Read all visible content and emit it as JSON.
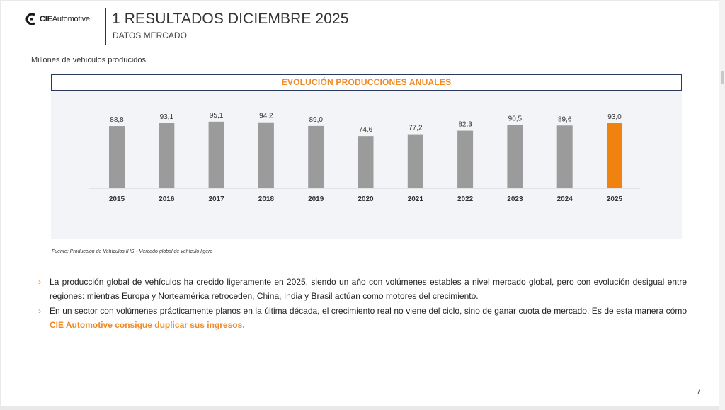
{
  "header": {
    "logo_bold": "CIE",
    "logo_light": "Automotive",
    "title": "1 RESULTADOS DICIEMBRE 2025",
    "subtitle": "DATOS MERCADO"
  },
  "units_label": "Millones de vehículos producidos",
  "chart_data": {
    "type": "bar",
    "title": "EVOLUCIÓN PRODUCCIONES ANUALES",
    "categories": [
      "2015",
      "2016",
      "2017",
      "2018",
      "2019",
      "2020",
      "2021",
      "2022",
      "2023",
      "2024",
      "2025"
    ],
    "values": [
      88.8,
      93.1,
      95.1,
      94.2,
      89.0,
      74.6,
      77.2,
      82.3,
      90.5,
      89.6,
      93.0
    ],
    "value_labels": [
      "88,8",
      "93,1",
      "95,1",
      "94,2",
      "89,0",
      "74,6",
      "77,2",
      "82,3",
      "90,5",
      "89,6",
      "93,0"
    ],
    "highlight_index": 10,
    "colors": {
      "bar": "#9b9b9b",
      "highlight": "#f0830f"
    },
    "xlabel": "",
    "ylabel": "",
    "grid": false,
    "legend": "none"
  },
  "source": "Fuente: Producción de Vehículos IHS - Mercado global de vehículo ligero",
  "bullets": [
    {
      "text": "La producción global de vehículos ha crecido ligeramente en 2025, siendo un año con volúmenes estables a nivel mercado global, pero con evolución desigual entre regiones: mientras Europa y Norteamérica retroceden, China, India y Brasil actúan como motores del crecimiento.",
      "highlight": ""
    },
    {
      "text": "En un sector con volúmenes prácticamente planos en la última década, el crecimiento real no viene del ciclo, sino de ganar cuota de mercado. Es de esta manera cómo ",
      "highlight": "CIE Automotive consigue duplicar sus ingresos."
    }
  ],
  "page_number": "7",
  "accent_color": "#f08a24"
}
